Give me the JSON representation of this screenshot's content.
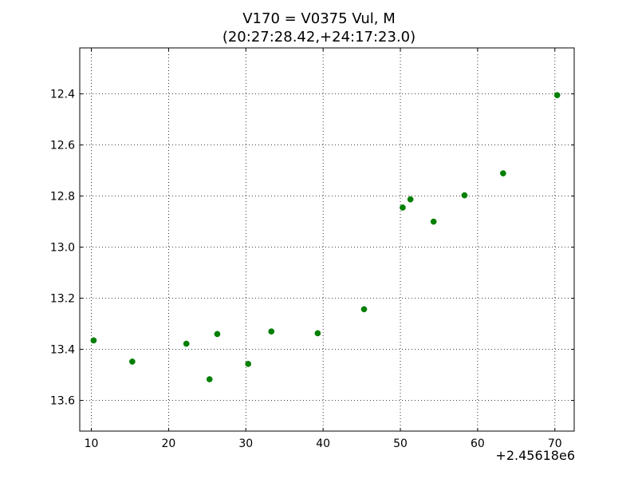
{
  "chart_data": {
    "type": "scatter",
    "title": "V170 = V0375 Vul, M",
    "subtitle": "(20:27:28.42,+24:17:23.0)",
    "xlabel": "",
    "ylabel": "",
    "x_offset_label": "+2.45618e6",
    "xlim": [
      8.5,
      72.5
    ],
    "ylim": [
      13.72,
      12.22
    ],
    "y_inverted": true,
    "grid": true,
    "x_ticks": [
      10,
      20,
      30,
      40,
      50,
      60,
      70
    ],
    "y_ticks": [
      12.4,
      12.6,
      12.8,
      13.0,
      13.2,
      13.4,
      13.6
    ],
    "x_tick_labels": [
      "10",
      "20",
      "30",
      "40",
      "50",
      "60",
      "70"
    ],
    "y_tick_labels": [
      "12.4",
      "12.6",
      "12.8",
      "13.0",
      "13.2",
      "13.4",
      "13.6"
    ],
    "marker_color": "#007f00",
    "series": [
      {
        "x": [
          10.3,
          15.3,
          22.3,
          25.3,
          26.3,
          30.3,
          33.3,
          39.3,
          45.3,
          50.3,
          51.3,
          54.3,
          58.3,
          63.3,
          70.3
        ],
        "y": [
          13.365,
          13.448,
          13.378,
          13.517,
          13.34,
          13.457,
          13.33,
          13.337,
          13.243,
          12.845,
          12.813,
          12.9,
          12.797,
          12.711,
          12.405
        ]
      }
    ]
  }
}
